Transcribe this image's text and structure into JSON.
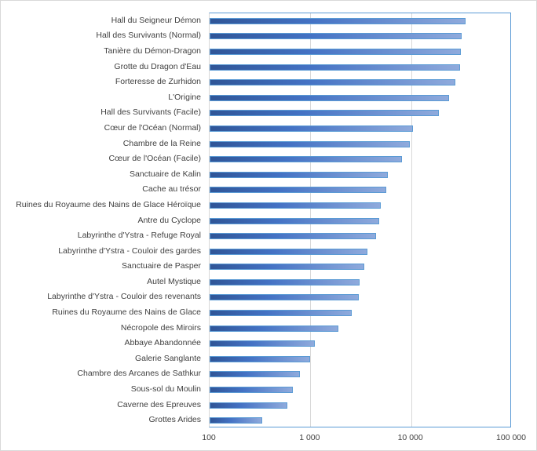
{
  "chart_data": {
    "type": "bar",
    "orientation": "horizontal",
    "title": "",
    "xlabel": "",
    "ylabel": "",
    "xscale": "log",
    "xlim": [
      100,
      100000
    ],
    "grid": true,
    "legend": false,
    "categories": [
      "Hall du Seigneur Démon",
      "Hall des Survivants (Normal)",
      "Tanière du Démon-Dragon",
      "Grotte du Dragon d'Eau",
      "Forteresse de Zurhidon",
      "L'Origine",
      "Hall des Survivants (Facile)",
      "Cœur de l'Océan (Normal)",
      "Chambre de la Reine",
      "Cœur de l'Océan (Facile)",
      "Sanctuaire de Kalin",
      "Cache au trésor",
      "Ruines du Royaume des Nains de Glace Héroïque",
      "Antre du Cyclope",
      "Labyrinthe d'Ystra - Refuge Royal",
      "Labyrinthe d'Ystra - Couloir des gardes",
      "Sanctuaire de Pasper",
      "Autel Mystique",
      "Labyrinthe d'Ystra - Couloir des revenants",
      "Ruines du Royaume des Nains de Glace",
      "Nécropole des Miroirs",
      "Abbaye Abandonnée",
      "Galerie Sanglante",
      "Chambre des Arcanes de Sathkur",
      "Sous-sol du Moulin",
      "Caverne des Epreuves",
      "Grottes Arides"
    ],
    "values": [
      35000,
      31500,
      31000,
      30500,
      27300,
      24000,
      18700,
      10400,
      9650,
      8070,
      5850,
      5640,
      5000,
      4800,
      4450,
      3660,
      3450,
      3100,
      3050,
      2560,
      1890,
      1100,
      1000,
      790,
      670,
      590,
      330
    ],
    "ticks": [
      {
        "value": 100,
        "label": "100"
      },
      {
        "value": 1000,
        "label": "1 000"
      },
      {
        "value": 10000,
        "label": "10 000"
      },
      {
        "value": 100000,
        "label": "100 000"
      }
    ],
    "colors": {
      "bar_dark": "#2f5597",
      "bar_mid": "#4472c4",
      "bar_light": "#8faadc",
      "bar_border": "#5b9bd5",
      "grid": "#d9d9d9",
      "text": "#404040"
    }
  }
}
